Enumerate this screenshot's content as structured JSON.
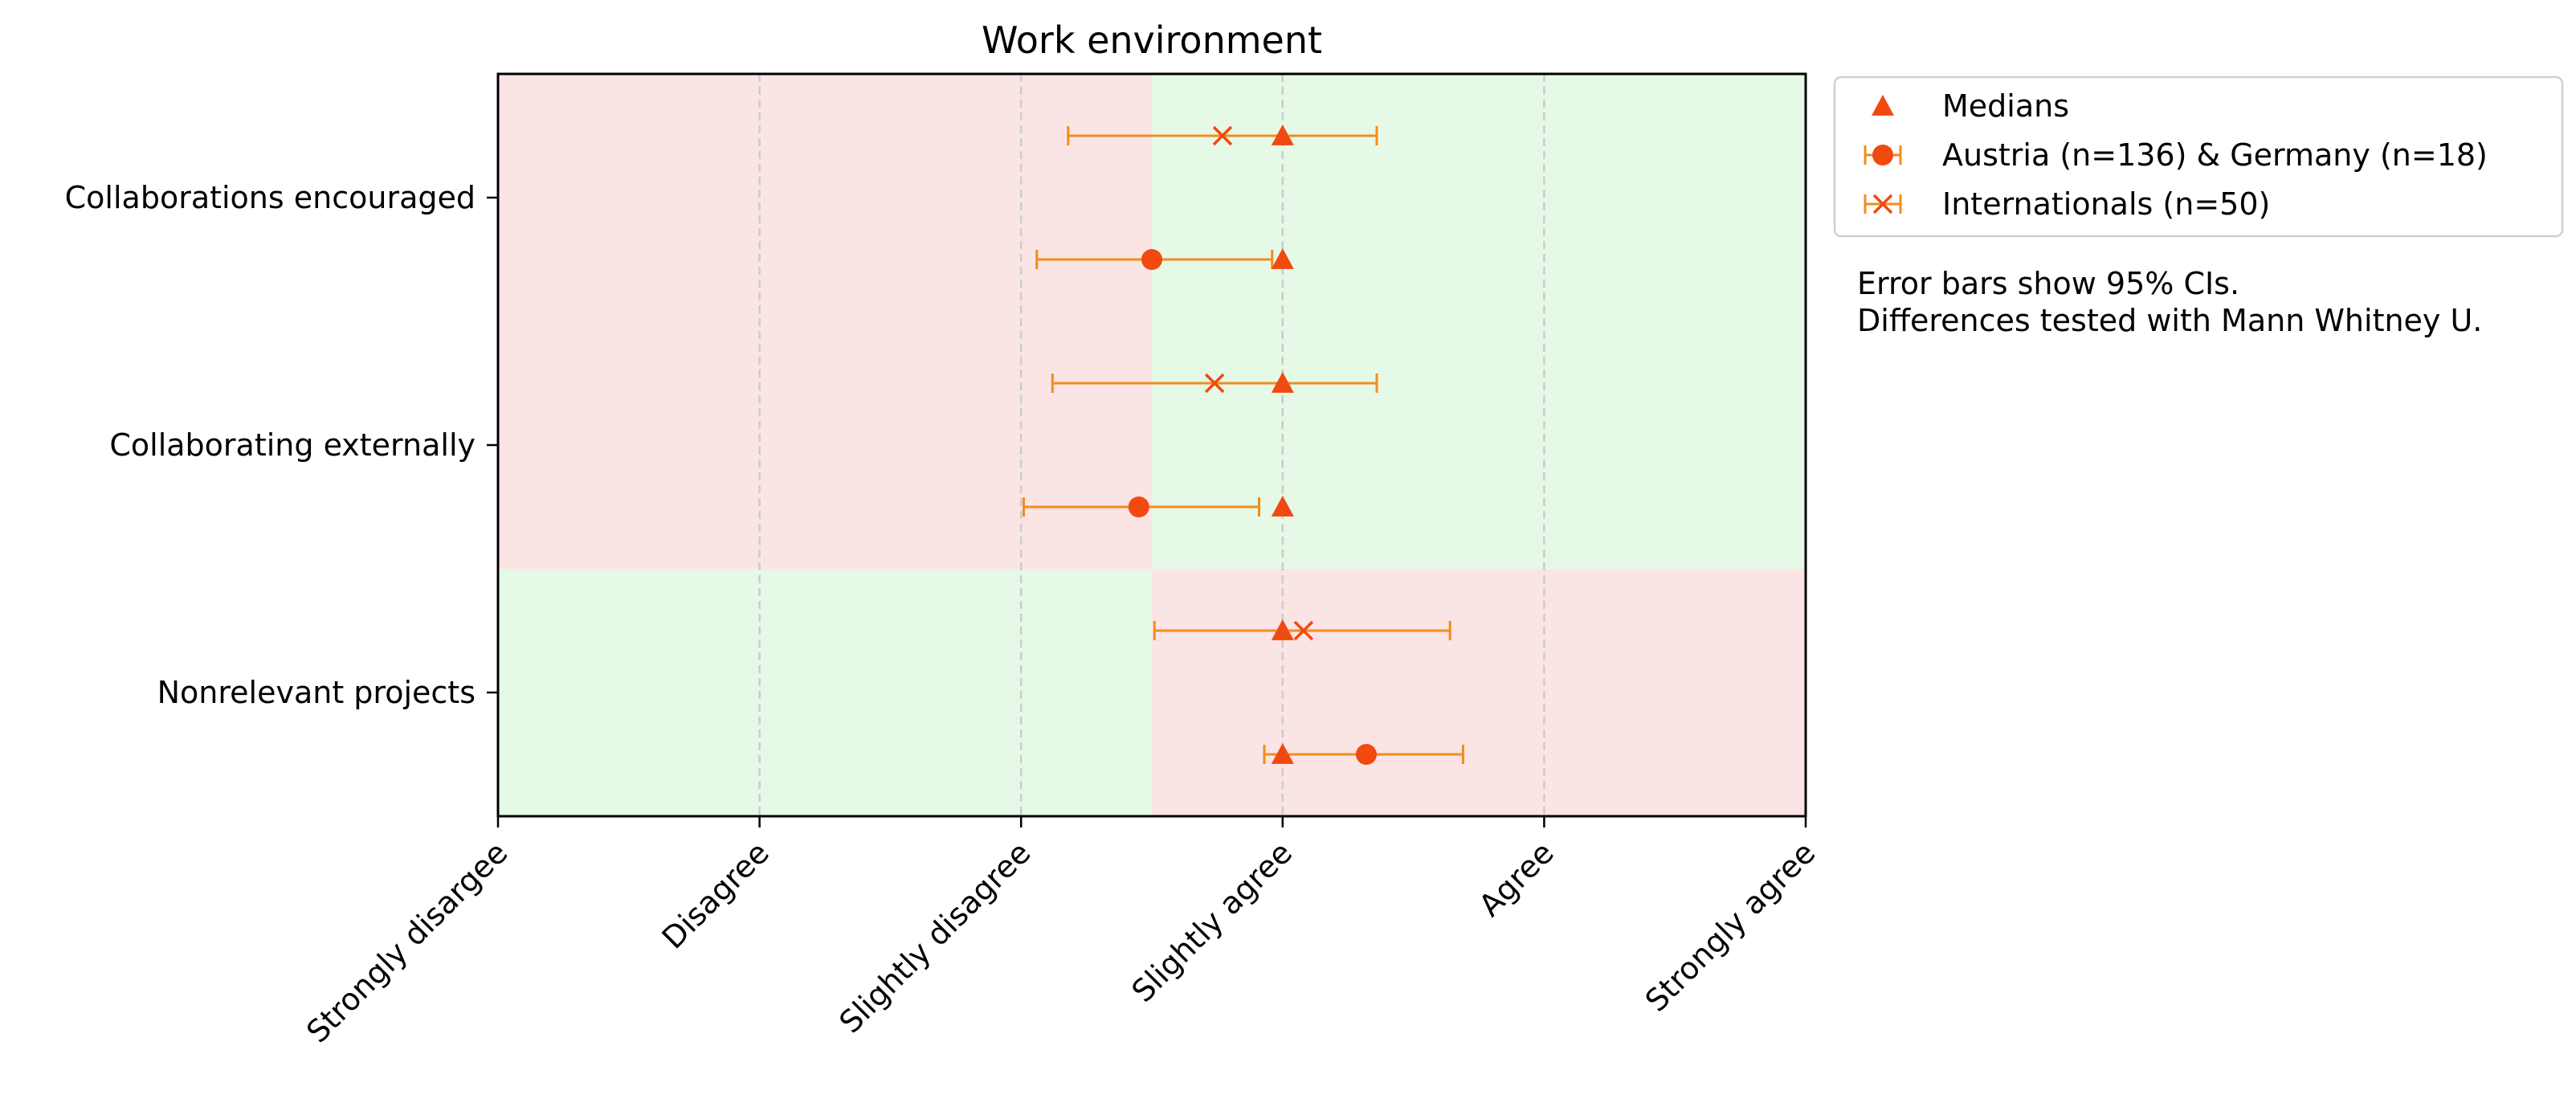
{
  "chart_data": {
    "type": "scatter",
    "title": "Work environment",
    "xlabel": "",
    "ylabel": "",
    "x_tick_labels": [
      "Strongly disargee",
      "Disagree",
      "Slightly disagree",
      "Slightly agree",
      "Agree",
      "Strongly agree"
    ],
    "xlim": [
      1,
      6
    ],
    "grid": "vertical dashed",
    "categories": [
      "Collaborations encouraged",
      "Collaborating externally",
      "Nonrelevant projects"
    ],
    "background_regions": [
      {
        "category": "Collaborations encouraged",
        "disagree_side": "red",
        "agree_side": "green"
      },
      {
        "category": "Collaborating externally",
        "disagree_side": "red",
        "agree_side": "green"
      },
      {
        "category": "Nonrelevant projects",
        "disagree_side": "green",
        "agree_side": "red"
      }
    ],
    "colors": {
      "marker": "#f04a10",
      "errorbar": "#f28c1e",
      "red_region": "#fbe4e4",
      "green_region": "#e6f9e6",
      "grid": "#cccccc"
    },
    "series": [
      {
        "name": "Medians",
        "marker": "triangle",
        "values": [
          4,
          4,
          4,
          4,
          4,
          4
        ]
      },
      {
        "name": "Austria (n=136) & Germany (n=18)",
        "marker": "circle",
        "points": [
          {
            "category": "Collaborations encouraged",
            "mean": 3.5,
            "ci": [
              3.06,
              3.96
            ]
          },
          {
            "category": "Collaborating externally",
            "mean": 3.45,
            "ci": [
              3.01,
              3.91
            ]
          },
          {
            "category": "Nonrelevant projects",
            "mean": 4.32,
            "ci": [
              3.93,
              4.69
            ]
          }
        ]
      },
      {
        "name": "Internationals (n=50)",
        "marker": "x",
        "points": [
          {
            "category": "Collaborations encouraged",
            "mean": 3.77,
            "ci": [
              3.18,
              4.36
            ]
          },
          {
            "category": "Collaborating externally",
            "mean": 3.74,
            "ci": [
              3.12,
              4.36
            ]
          },
          {
            "category": "Nonrelevant projects",
            "mean": 4.08,
            "ci": [
              3.51,
              4.64
            ]
          }
        ]
      }
    ],
    "legend": {
      "placement": "outside-top-right",
      "entries": [
        "Medians",
        "Austria (n=136) & Germany (n=18)",
        "Internationals (n=50)"
      ]
    },
    "annotations": [
      "Error bars show 95% CIs.",
      "Differences tested with Mann Whitney U."
    ]
  }
}
